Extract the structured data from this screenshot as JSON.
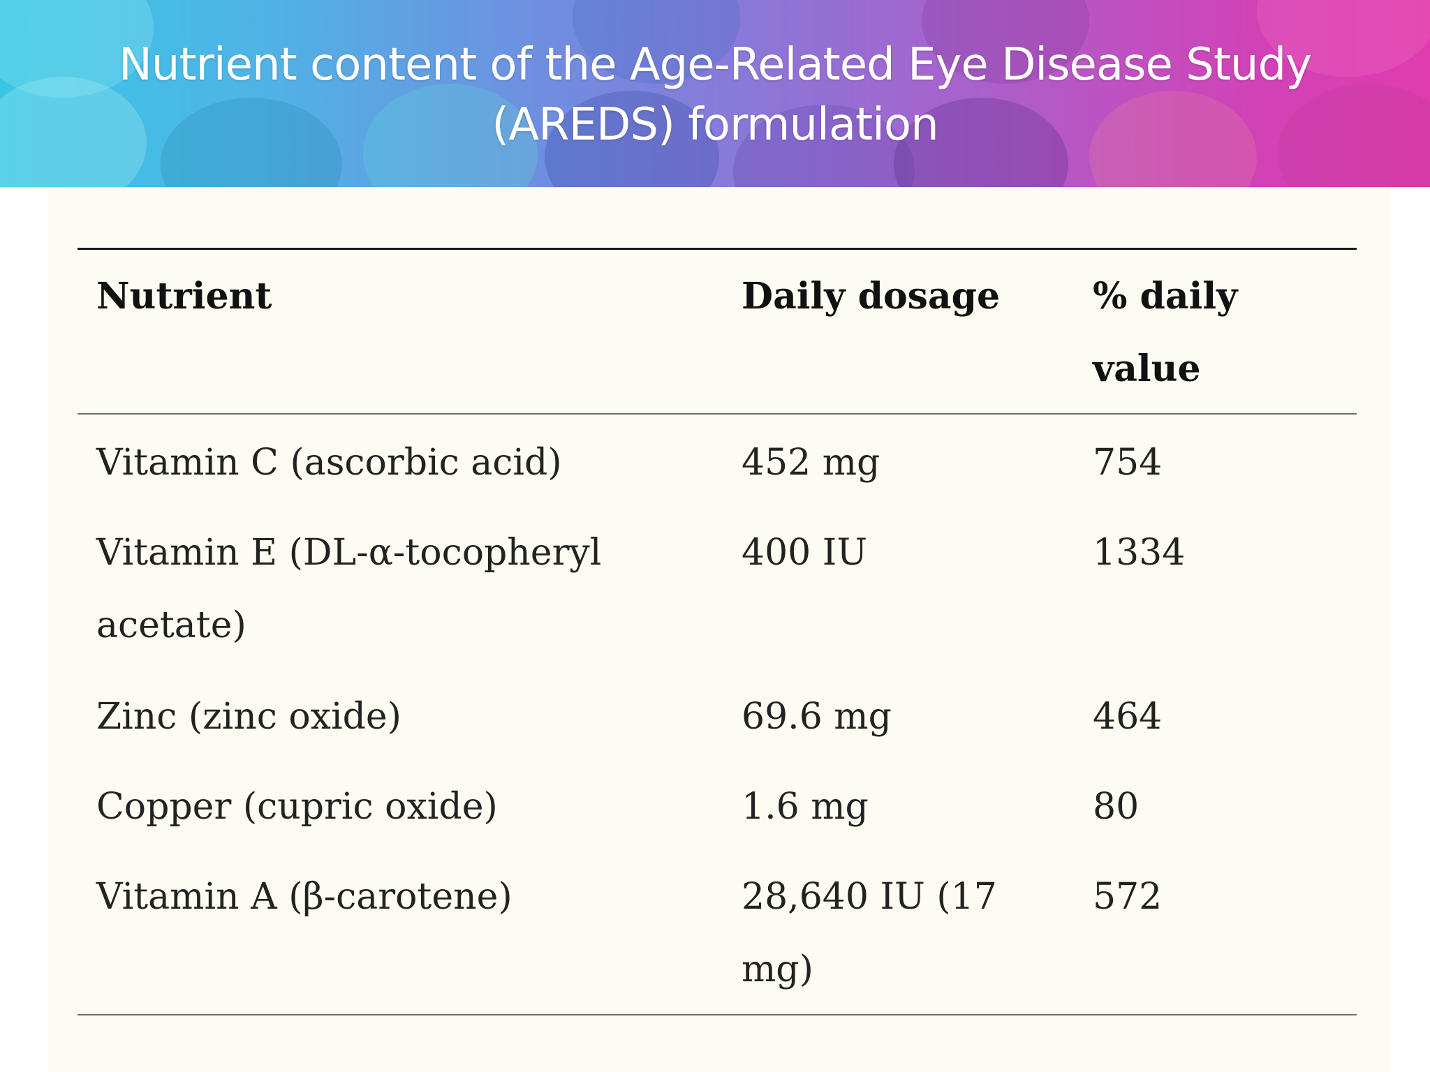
{
  "slide": {
    "title_line1": "Nutrient content of the Age-Related Eye Disease Study",
    "title_line2": "(AREDS) formulation"
  },
  "table": {
    "headers": [
      "Nutrient",
      "Daily dosage",
      "% daily value"
    ],
    "rows": [
      [
        "Vitamin C (ascorbic acid)",
        "452 mg",
        "754"
      ],
      [
        "Vitamin E (DL-α-tocopheryl acetate)",
        "400 IU",
        "1334"
      ],
      [
        "Zinc (zinc oxide)",
        "69.6 mg",
        "464"
      ],
      [
        "Copper (cupric oxide)",
        "1.6 mg",
        "80"
      ],
      [
        "Vitamin A (β-carotene)",
        "28,640 IU (17 mg)",
        "572"
      ]
    ]
  },
  "colors": {
    "panel_background": "#fdfcf3",
    "banner_left": "#38c6e4",
    "banner_right": "#e03caf",
    "text": "#222222"
  }
}
